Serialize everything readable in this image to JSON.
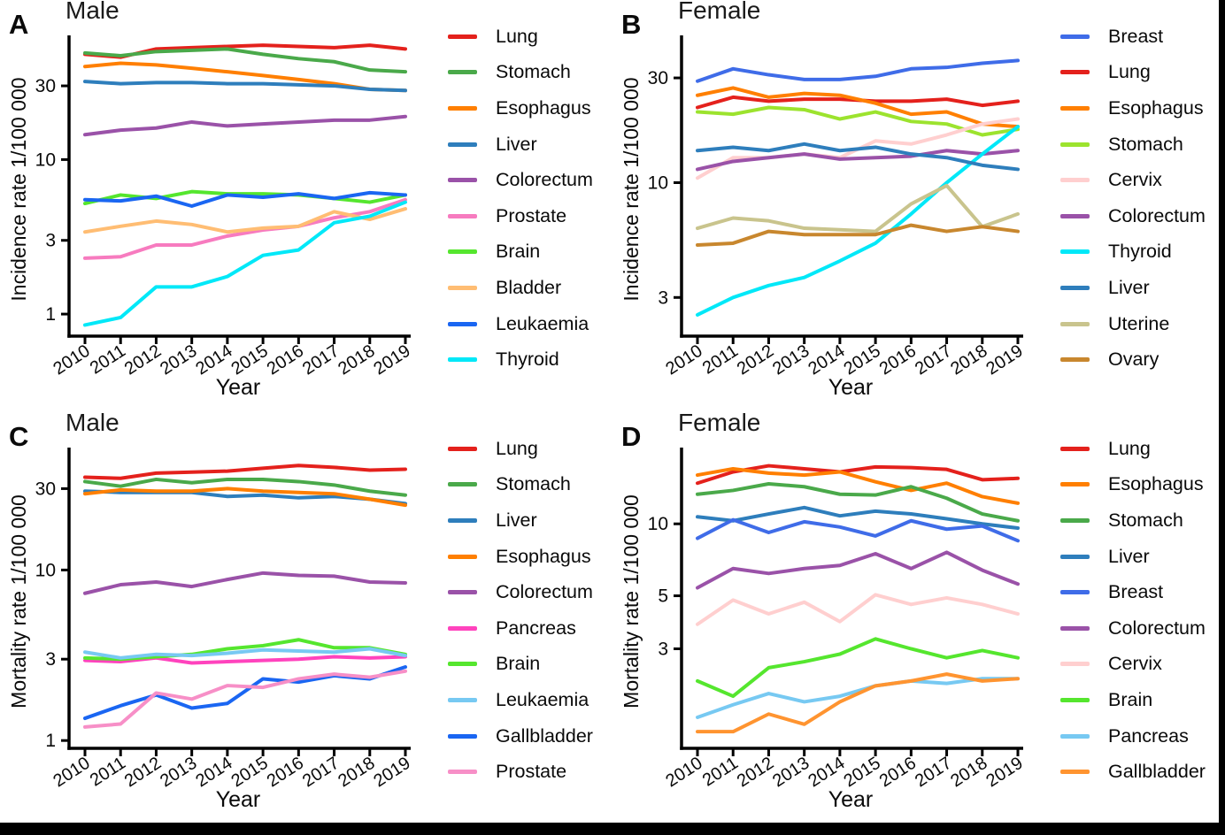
{
  "page": {
    "background": "#ffffff",
    "frame_color": "#000000",
    "x_axis_label": "Year",
    "years": [
      "2010",
      "2011",
      "2012",
      "2013",
      "2014",
      "2015",
      "2016",
      "2017",
      "2018",
      "2019"
    ]
  },
  "chart_data": [
    {
      "type": "line",
      "panel_label": "A",
      "title": "Male",
      "xlabel": "Year",
      "ylabel": "Incidence rate 1/100 000",
      "x": [
        "2010",
        "2011",
        "2012",
        "2013",
        "2014",
        "2015",
        "2016",
        "2017",
        "2018",
        "2019"
      ],
      "yscale": "log",
      "ylim": [
        0.72,
        62
      ],
      "yticks": [
        1,
        3,
        10,
        30
      ],
      "grid": false,
      "legend_position": "right",
      "series": [
        {
          "name": "Lung",
          "color": "#e4211c",
          "values": [
            48,
            46,
            52,
            53,
            54,
            55,
            54,
            53,
            55,
            52
          ]
        },
        {
          "name": "Stomach",
          "color": "#4aa94a",
          "values": [
            49,
            47,
            50,
            51,
            52,
            48,
            45,
            43,
            38,
            37
          ]
        },
        {
          "name": "Esophagus",
          "color": "#ff7f00",
          "values": [
            40,
            42,
            41,
            39,
            37,
            35,
            33,
            31,
            28.5,
            28
          ]
        },
        {
          "name": "Liver",
          "color": "#2e7ebc",
          "values": [
            32,
            31,
            31.5,
            31.5,
            31,
            31,
            30.5,
            30,
            28.5,
            28
          ]
        },
        {
          "name": "Colorectum",
          "color": "#9a52a8",
          "values": [
            14.5,
            15.5,
            16,
            17.5,
            16.5,
            17,
            17.5,
            18,
            18,
            19
          ]
        },
        {
          "name": "Prostate",
          "color": "#f77bbf",
          "values": [
            2.3,
            2.35,
            2.8,
            2.8,
            3.2,
            3.5,
            3.7,
            4.2,
            4.6,
            5.5
          ]
        },
        {
          "name": "Brain",
          "color": "#55e62e",
          "values": [
            5.2,
            5.9,
            5.6,
            6.2,
            6.0,
            6.0,
            5.9,
            5.6,
            5.3,
            5.9
          ]
        },
        {
          "name": "Bladder",
          "color": "#ffbd73",
          "values": [
            3.4,
            3.7,
            4.0,
            3.8,
            3.4,
            3.6,
            3.7,
            4.6,
            4.1,
            4.8
          ]
        },
        {
          "name": "Leukaemia",
          "color": "#1a66f2",
          "values": [
            5.5,
            5.4,
            5.8,
            5.0,
            5.9,
            5.7,
            6.0,
            5.6,
            6.1,
            5.9
          ]
        },
        {
          "name": "Thyroid",
          "color": "#00e8f8",
          "values": [
            0.85,
            0.95,
            1.5,
            1.5,
            1.75,
            2.4,
            2.6,
            3.9,
            4.3,
            5.3
          ]
        }
      ]
    },
    {
      "type": "line",
      "panel_label": "B",
      "title": "Female",
      "xlabel": "Year",
      "ylabel": "Incidence rate 1/100 000",
      "x": [
        "2010",
        "2011",
        "2012",
        "2013",
        "2014",
        "2015",
        "2016",
        "2017",
        "2018",
        "2019"
      ],
      "yscale": "log",
      "ylim": [
        2.0,
        46
      ],
      "yticks": [
        3,
        10,
        30
      ],
      "grid": false,
      "legend_position": "right",
      "series": [
        {
          "name": "Breast",
          "color": "#3f6ce8",
          "values": [
            29,
            33,
            31,
            29.5,
            29.5,
            30.5,
            33,
            33.5,
            35,
            36
          ]
        },
        {
          "name": "Lung",
          "color": "#e4211c",
          "values": [
            22,
            24.5,
            23.5,
            24,
            24,
            23.5,
            23.5,
            24,
            22.5,
            23.5
          ]
        },
        {
          "name": "Esophagus",
          "color": "#ff7f00",
          "values": [
            25,
            27,
            24.5,
            25.5,
            25,
            23,
            20.5,
            21,
            18.5,
            18
          ]
        },
        {
          "name": "Stomach",
          "color": "#9ce32e",
          "values": [
            21,
            20.5,
            22,
            21.5,
            19.5,
            21,
            19,
            18.5,
            16.5,
            17.5
          ]
        },
        {
          "name": "Cervix",
          "color": "#ffcfcf",
          "values": [
            10.5,
            13,
            13,
            13.5,
            13,
            15.5,
            15,
            16.5,
            18.5,
            19.5
          ]
        },
        {
          "name": "Colorectum",
          "color": "#9a52a8",
          "values": [
            11.5,
            12.5,
            13,
            13.5,
            12.8,
            13,
            13.2,
            14,
            13.5,
            14
          ]
        },
        {
          "name": "Thyroid",
          "color": "#00e8f8",
          "values": [
            2.5,
            3.0,
            3.4,
            3.7,
            4.4,
            5.3,
            7.2,
            10,
            13.5,
            18
          ]
        },
        {
          "name": "Liver",
          "color": "#2e7ebc",
          "values": [
            14,
            14.5,
            14,
            15,
            14,
            14.5,
            13.5,
            13,
            12,
            11.5
          ]
        },
        {
          "name": "Uterine",
          "color": "#c9c48d",
          "values": [
            6.2,
            6.9,
            6.7,
            6.2,
            6.1,
            6.0,
            8.0,
            9.7,
            6.3,
            7.2
          ]
        },
        {
          "name": "Ovary",
          "color": "#c8872e",
          "values": [
            5.2,
            5.3,
            6.0,
            5.8,
            5.8,
            5.8,
            6.4,
            6.0,
            6.3,
            6.0
          ]
        }
      ]
    },
    {
      "type": "line",
      "panel_label": "C",
      "title": "Male",
      "xlabel": "Year",
      "ylabel": "Mortality rate 1/100 000",
      "x": [
        "2010",
        "2011",
        "2012",
        "2013",
        "2014",
        "2015",
        "2016",
        "2017",
        "2018",
        "2019"
      ],
      "yscale": "log",
      "ylim": [
        0.9,
        51
      ],
      "yticks": [
        1,
        3,
        10,
        30
      ],
      "grid": false,
      "legend_position": "right",
      "series": [
        {
          "name": "Lung",
          "color": "#e4211c",
          "values": [
            35,
            34.5,
            37,
            37.5,
            38,
            39.5,
            41,
            40,
            38.5,
            39
          ]
        },
        {
          "name": "Stomach",
          "color": "#4aa94a",
          "values": [
            33,
            31,
            34,
            32.5,
            34,
            34,
            33,
            31.5,
            29,
            27.5
          ]
        },
        {
          "name": "Liver",
          "color": "#2e7ebc",
          "values": [
            29,
            28.5,
            28.5,
            28.5,
            27,
            27.5,
            26.5,
            27,
            26,
            24.5
          ]
        },
        {
          "name": "Esophagus",
          "color": "#ff7f00",
          "values": [
            28,
            29.5,
            29,
            29,
            30,
            29,
            28.5,
            28,
            26,
            24
          ]
        },
        {
          "name": "Colorectum",
          "color": "#9a52a8",
          "values": [
            7.3,
            8.2,
            8.5,
            8.0,
            8.8,
            9.6,
            9.3,
            9.2,
            8.5,
            8.4
          ]
        },
        {
          "name": "Pancreas",
          "color": "#ff43bd",
          "values": [
            2.95,
            2.9,
            3.05,
            2.85,
            2.9,
            2.95,
            3.0,
            3.1,
            3.05,
            3.1
          ]
        },
        {
          "name": "Brain",
          "color": "#55e62e",
          "values": [
            3.05,
            3.0,
            3.1,
            3.2,
            3.45,
            3.6,
            3.9,
            3.5,
            3.5,
            3.2
          ]
        },
        {
          "name": "Leukaemia",
          "color": "#77c9f2",
          "values": [
            3.3,
            3.05,
            3.2,
            3.15,
            3.25,
            3.4,
            3.35,
            3.3,
            3.45,
            3.15
          ]
        },
        {
          "name": "Gallbladder",
          "color": "#1a66f2",
          "values": [
            1.35,
            1.6,
            1.85,
            1.55,
            1.65,
            2.3,
            2.2,
            2.4,
            2.3,
            2.7
          ]
        },
        {
          "name": "Prostate",
          "color": "#f78fc7",
          "values": [
            1.2,
            1.25,
            1.9,
            1.75,
            2.1,
            2.05,
            2.3,
            2.45,
            2.35,
            2.55
          ]
        }
      ]
    },
    {
      "type": "line",
      "panel_label": "D",
      "title": "Female",
      "xlabel": "Year",
      "ylabel": "Mortality rate 1/100 000",
      "x": [
        "2010",
        "2011",
        "2012",
        "2013",
        "2014",
        "2015",
        "2016",
        "2017",
        "2018",
        "2019"
      ],
      "yscale": "log",
      "ylim": [
        1.15,
        20.5
      ],
      "yticks": [
        3,
        5,
        10
      ],
      "grid": false,
      "legend_position": "right",
      "series": [
        {
          "name": "Lung",
          "color": "#e4211c",
          "values": [
            14.8,
            16.5,
            17.5,
            17,
            16.5,
            17.3,
            17.2,
            16.9,
            15.3,
            15.5
          ]
        },
        {
          "name": "Esophagus",
          "color": "#ff7f00",
          "values": [
            16,
            17,
            16.3,
            16,
            16.5,
            15,
            13.8,
            14.8,
            13,
            12.2
          ]
        },
        {
          "name": "Stomach",
          "color": "#4aa94a",
          "values": [
            13.3,
            13.8,
            14.7,
            14.3,
            13.3,
            13.2,
            14.3,
            12.8,
            11,
            10.3
          ]
        },
        {
          "name": "Liver",
          "color": "#2e7ebc",
          "values": [
            10.7,
            10.3,
            11,
            11.7,
            10.8,
            11.3,
            11,
            10.5,
            10,
            9.6
          ]
        },
        {
          "name": "Breast",
          "color": "#3f6ce8",
          "values": [
            8.7,
            10.4,
            9.2,
            10.2,
            9.7,
            8.9,
            10.3,
            9.5,
            9.8,
            8.5
          ]
        },
        {
          "name": "Colorectum",
          "color": "#9a52a8",
          "values": [
            5.4,
            6.5,
            6.2,
            6.5,
            6.7,
            7.5,
            6.5,
            7.6,
            6.4,
            5.6
          ]
        },
        {
          "name": "Cervix",
          "color": "#ffcfcf",
          "values": [
            3.8,
            4.8,
            4.2,
            4.7,
            3.9,
            5.05,
            4.6,
            4.9,
            4.6,
            4.2
          ]
        },
        {
          "name": "Brain",
          "color": "#55e62e",
          "values": [
            2.2,
            1.9,
            2.5,
            2.65,
            2.85,
            3.3,
            3.0,
            2.75,
            2.95,
            2.75
          ]
        },
        {
          "name": "Pancreas",
          "color": "#77c9f2",
          "values": [
            1.55,
            1.75,
            1.95,
            1.8,
            1.9,
            2.1,
            2.2,
            2.15,
            2.25,
            2.25
          ]
        },
        {
          "name": "Gallbladder",
          "color": "#ff9430",
          "values": [
            1.35,
            1.35,
            1.6,
            1.45,
            1.8,
            2.1,
            2.2,
            2.35,
            2.2,
            2.25
          ]
        }
      ]
    }
  ]
}
